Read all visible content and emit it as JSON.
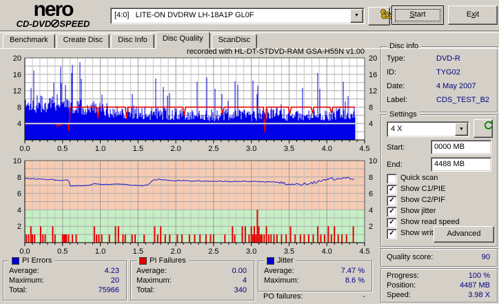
{
  "header": {
    "logo_line1": "nero",
    "logo_line2a": "CD-DVD",
    "logo_line2b": "SPEED",
    "drive_selector_value": "[4:0]   LITE-ON DVDRW LH-18A1P GL0F",
    "start_button": {
      "key": "S",
      "rest": "tart"
    },
    "exit_button": {
      "pre": "E",
      "key": "x",
      "rest": "it"
    }
  },
  "tabs": [
    {
      "label": "Benchmark",
      "active": false
    },
    {
      "label": "Create Disc",
      "active": false
    },
    {
      "label": "Disc Info",
      "active": false
    },
    {
      "label": "Disc Quality",
      "active": true
    },
    {
      "label": "ScanDisc",
      "active": false
    }
  ],
  "disc_info": {
    "title": "Disc info",
    "rows": [
      {
        "label": "Type:",
        "value": "DVD-R"
      },
      {
        "label": "ID:",
        "value": "TYG02"
      },
      {
        "label": "Date:",
        "value": "4 May 2007"
      },
      {
        "label": "Label:",
        "value": "CDS_TEST_B2"
      }
    ]
  },
  "settings": {
    "title": "Settings",
    "speed_selected": "4 X",
    "start_label": "Start:",
    "start_value": "0000 MB",
    "end_label": "End:",
    "end_value": "4488 MB",
    "checkboxes": [
      {
        "label": "Quick scan",
        "checked": false
      },
      {
        "label": "Show C1/PIE",
        "checked": true
      },
      {
        "label": "Show C2/PIF",
        "checked": true
      },
      {
        "label": "Show jitter",
        "checked": true
      },
      {
        "label": "Show read speed",
        "checked": true
      },
      {
        "label": "Show write speed",
        "checked": true
      }
    ],
    "advanced_button": "Advanced"
  },
  "quality": {
    "label": "Quality score:",
    "value": "90"
  },
  "progress": {
    "rows": [
      {
        "label": "Progress:",
        "value": "100 %"
      },
      {
        "label": "Position:",
        "value": "4487 MB"
      },
      {
        "label": "Speed:",
        "value": "3.98 X"
      }
    ]
  },
  "stats": {
    "pi_errors": {
      "title": "PI Errors",
      "legend_color": "#0000cc",
      "rows": [
        {
          "label": "Average:",
          "value": "4.23"
        },
        {
          "label": "Maximum:",
          "value": "20"
        },
        {
          "label": "Total:",
          "value": "75966"
        }
      ]
    },
    "pi_failures": {
      "title": "PI Failures",
      "legend_color": "#dd0000",
      "rows": [
        {
          "label": "Average:",
          "value": "0.00"
        },
        {
          "label": "Maximum:",
          "value": "4"
        },
        {
          "label": "Total:",
          "value": "340"
        }
      ]
    },
    "jitter": {
      "title": "Jitter",
      "legend_color": "#0000cc",
      "rows": [
        {
          "label": "Average:",
          "value": "7.47 %"
        },
        {
          "label": "Maximum:",
          "value": "8.6 %"
        }
      ]
    },
    "po_failures": {
      "label": "PO failures:",
      "value": "-"
    }
  },
  "chart_data": [
    {
      "type": "area",
      "title": "recorded with HL-DT-STDVD-RAM GSA-H55N v1.00",
      "x_range": [
        0,
        4.5
      ],
      "y_range": [
        0,
        20
      ],
      "x_ticks": [
        0.0,
        0.5,
        1.0,
        1.5,
        2.0,
        2.5,
        3.0,
        3.5,
        4.0,
        4.5
      ],
      "y_ticks": [
        4,
        8,
        12,
        16,
        20
      ],
      "data_end_x": 4.38,
      "grid": true,
      "series": [
        {
          "name": "PI Errors",
          "color": "#0000e8",
          "render": "noise-fill",
          "seed": 1337,
          "mean_profile": [
            [
              0,
              10.5
            ],
            [
              0.2,
              11
            ],
            [
              0.5,
              10.5
            ],
            [
              0.8,
              10
            ],
            [
              1.0,
              9.2
            ],
            [
              1.3,
              8.6
            ],
            [
              1.6,
              8.2
            ],
            [
              2.0,
              7.8
            ],
            [
              2.5,
              7.6
            ],
            [
              3.0,
              7.6
            ],
            [
              3.3,
              8.1
            ],
            [
              3.6,
              7.2
            ],
            [
              4.0,
              7.6
            ],
            [
              4.38,
              8.6
            ]
          ],
          "summary": {
            "average": 4.23,
            "maximum": 20,
            "total": 75966
          }
        },
        {
          "name": "Write speed",
          "color": "#e80000",
          "render": "line",
          "points": [
            [
              0,
              4
            ],
            [
              0.42,
              4
            ],
            [
              0.43,
              3.3
            ],
            [
              0.45,
              4
            ],
            [
              0.47,
              3.5
            ],
            [
              0.49,
              4
            ],
            [
              0.57,
              4
            ],
            [
              0.585,
              2.1
            ],
            [
              0.6,
              7.9
            ],
            [
              0.62,
              8
            ],
            [
              0.95,
              8
            ],
            [
              0.97,
              5.3
            ],
            [
              0.99,
              8
            ],
            [
              1.33,
              8
            ],
            [
              1.35,
              5.2
            ],
            [
              1.37,
              8
            ],
            [
              2.09,
              8
            ],
            [
              2.11,
              5.9
            ],
            [
              2.13,
              8
            ],
            [
              2.6,
              8
            ],
            [
              2.62,
              6.6
            ],
            [
              2.64,
              8
            ],
            [
              3.16,
              8
            ],
            [
              3.18,
              1.8
            ],
            [
              3.2,
              8
            ],
            [
              3.49,
              8
            ],
            [
              3.51,
              6.3
            ],
            [
              3.53,
              8
            ],
            [
              3.79,
              8
            ],
            [
              3.81,
              6.7
            ],
            [
              3.83,
              8
            ],
            [
              4.04,
              8
            ],
            [
              4.06,
              6.5
            ],
            [
              4.08,
              8
            ],
            [
              4.37,
              8
            ]
          ]
        },
        {
          "name": "Read speed",
          "color": "#d8d8d8",
          "render": "line",
          "points": [
            [
              0,
              4
            ],
            [
              4.38,
              4
            ]
          ]
        }
      ]
    },
    {
      "type": "line+bars",
      "x_range": [
        0,
        4.5
      ],
      "y_range": [
        0,
        10
      ],
      "x_ticks": [
        0.0,
        0.5,
        1.0,
        1.5,
        2.0,
        2.5,
        3.0,
        3.5,
        4.0,
        4.5
      ],
      "y_ticks": [
        2,
        4,
        6,
        8,
        10
      ],
      "data_end_x": 4.38,
      "zones": [
        {
          "from": 4,
          "to": 10,
          "color": "#f7cbb2"
        },
        {
          "from": 0,
          "to": 4,
          "color": "#c5efc5"
        }
      ],
      "series": [
        {
          "name": "Jitter",
          "color": "#1a1acc",
          "render": "noisy-line",
          "seed": 77,
          "noise": 0.06,
          "noise_boost": {
            "from": 3.35,
            "factor": 2.6
          },
          "profile": [
            [
              0,
              7.9
            ],
            [
              0.05,
              7.8
            ],
            [
              0.2,
              7.75
            ],
            [
              0.35,
              7.7
            ],
            [
              0.5,
              7.6
            ],
            [
              0.58,
              7.65
            ],
            [
              0.6,
              6.9
            ],
            [
              0.75,
              6.95
            ],
            [
              0.88,
              7.0
            ],
            [
              0.92,
              7.25
            ],
            [
              0.98,
              7.1
            ],
            [
              1.1,
              7.1
            ],
            [
              1.25,
              7.15
            ],
            [
              1.4,
              7.05
            ],
            [
              1.55,
              6.95
            ],
            [
              1.62,
              7.0
            ],
            [
              1.7,
              7.6
            ],
            [
              1.78,
              7.75
            ],
            [
              1.9,
              7.6
            ],
            [
              2.1,
              7.55
            ],
            [
              2.4,
              7.5
            ],
            [
              2.7,
              7.45
            ],
            [
              3.0,
              7.45
            ],
            [
              3.3,
              7.4
            ],
            [
              3.5,
              7.15
            ],
            [
              3.65,
              7.1
            ],
            [
              3.8,
              7.3
            ],
            [
              3.95,
              7.55
            ],
            [
              4.05,
              7.8
            ],
            [
              4.15,
              7.7
            ],
            [
              4.25,
              7.85
            ],
            [
              4.35,
              7.85
            ]
          ],
          "summary": {
            "average_pct": 7.47,
            "maximum_pct": 8.6
          }
        },
        {
          "name": "PI Failures",
          "color": "#e80000",
          "render": "bars",
          "bars": [
            [
              0.02,
              1
            ],
            [
              0.05,
              1
            ],
            [
              0.08,
              2
            ],
            [
              0.1,
              1
            ],
            [
              0.13,
              1
            ],
            [
              0.21,
              2
            ],
            [
              0.24,
              1
            ],
            [
              0.27,
              1
            ],
            [
              0.37,
              2
            ],
            [
              0.4,
              1
            ],
            [
              0.5,
              1
            ],
            [
              0.52,
              1
            ],
            [
              0.53,
              1
            ],
            [
              0.54,
              1
            ],
            [
              0.55,
              1
            ],
            [
              0.58,
              1
            ],
            [
              0.63,
              1
            ],
            [
              0.68,
              1
            ],
            [
              0.92,
              2
            ],
            [
              0.95,
              1
            ],
            [
              0.98,
              1
            ],
            [
              1.02,
              1
            ],
            [
              1.12,
              1
            ],
            [
              1.2,
              2
            ],
            [
              1.24,
              2
            ],
            [
              1.3,
              1
            ],
            [
              1.33,
              1
            ],
            [
              1.42,
              1
            ],
            [
              1.46,
              1
            ],
            [
              1.58,
              1
            ],
            [
              1.72,
              2
            ],
            [
              1.76,
              1
            ],
            [
              1.8,
              2
            ],
            [
              1.86,
              1
            ],
            [
              1.92,
              1
            ],
            [
              2.02,
              1
            ],
            [
              2.08,
              1
            ],
            [
              2.18,
              1
            ],
            [
              2.25,
              1
            ],
            [
              2.32,
              1
            ],
            [
              2.4,
              1
            ],
            [
              2.46,
              1
            ],
            [
              2.5,
              1
            ],
            [
              2.65,
              1
            ],
            [
              2.75,
              2
            ],
            [
              2.78,
              1
            ],
            [
              2.88,
              2
            ],
            [
              2.92,
              2
            ],
            [
              2.97,
              1
            ],
            [
              3.0,
              2
            ],
            [
              3.02,
              1
            ],
            [
              3.04,
              2
            ],
            [
              3.06,
              1
            ],
            [
              3.08,
              4
            ],
            [
              3.1,
              2
            ],
            [
              3.12,
              1
            ],
            [
              3.14,
              1
            ],
            [
              3.17,
              1
            ],
            [
              3.2,
              2
            ],
            [
              3.23,
              1
            ],
            [
              3.26,
              1
            ],
            [
              3.3,
              1
            ],
            [
              3.34,
              1
            ],
            [
              3.4,
              1
            ],
            [
              3.46,
              1
            ],
            [
              3.52,
              2
            ],
            [
              3.58,
              1
            ],
            [
              3.65,
              1
            ],
            [
              3.7,
              1
            ],
            [
              3.76,
              1
            ],
            [
              3.82,
              1
            ],
            [
              3.88,
              2
            ],
            [
              3.92,
              1
            ],
            [
              3.97,
              1
            ],
            [
              4.02,
              2
            ],
            [
              4.06,
              1
            ],
            [
              4.1,
              2
            ],
            [
              4.15,
              1
            ],
            [
              4.2,
              1
            ],
            [
              4.26,
              1
            ],
            [
              4.35,
              2
            ]
          ],
          "summary": {
            "average": 0.0,
            "maximum": 4,
            "total": 340
          }
        }
      ]
    }
  ],
  "colors": {
    "window_bg": "#d4d0c8",
    "value_text": "#000080",
    "pi_blue": "#0000e8",
    "fail_red": "#e80000"
  }
}
